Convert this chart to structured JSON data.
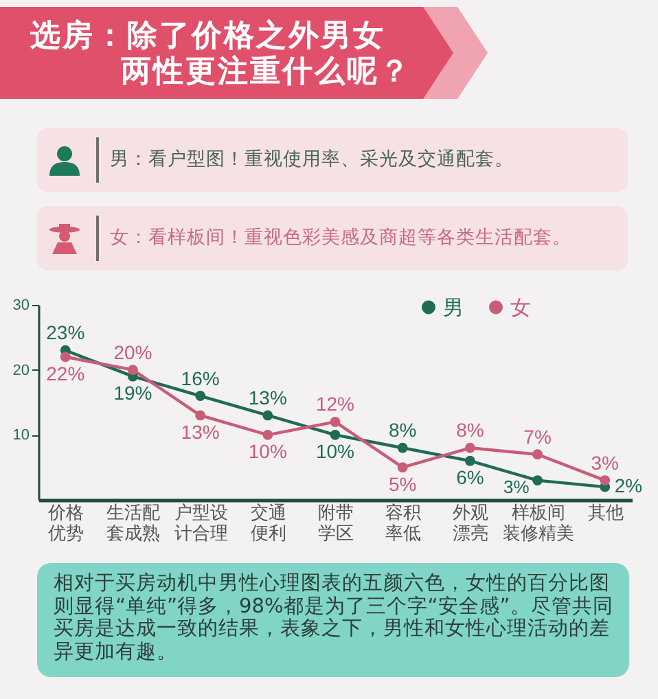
{
  "chart_data": {
    "type": "line",
    "title": "选房：除了价格之外男女两性更注重什么呢？",
    "annotations": [
      "男：看户型图！重视使用率、采光及交通配套。",
      "女：看样板间！重视色彩美感及商超等各类生活配套。",
      "相对于买房动机中男性心理图表的五颜六色，女性的百分比图则显得“单纯”得多，98%都是为了三个字“安全感”。尽管共同买房是达成一致的结果，表象之下，男性和女性心理活动的差异更加有趣。"
    ],
    "categories": [
      "价格优势",
      "生活配套成熟",
      "户型设计合理",
      "交通便利",
      "附带学区",
      "容积率低",
      "外观漂亮",
      "样板间装修精美",
      "其他"
    ],
    "series": [
      {
        "name": "男",
        "color": "#1f6b53",
        "values": [
          23,
          19,
          16,
          13,
          10,
          8,
          6,
          3,
          2
        ],
        "value_labels": [
          "23%",
          "19%",
          "16%",
          "13%",
          "10%",
          "8%",
          "6%",
          "3%",
          "2%"
        ]
      },
      {
        "name": "女",
        "color": "#c95c76",
        "values": [
          22,
          20,
          13,
          10,
          12,
          5,
          8,
          7,
          3
        ],
        "value_labels": [
          "22%",
          "20%",
          "13%",
          "10%",
          "12%",
          "5%",
          "8%",
          "7%",
          "3%"
        ]
      }
    ],
    "ylim": [
      0,
      30
    ],
    "yticks": [
      10,
      20,
      30
    ],
    "legend": "top right",
    "marker": "circle",
    "line_style": "solid"
  }
}
